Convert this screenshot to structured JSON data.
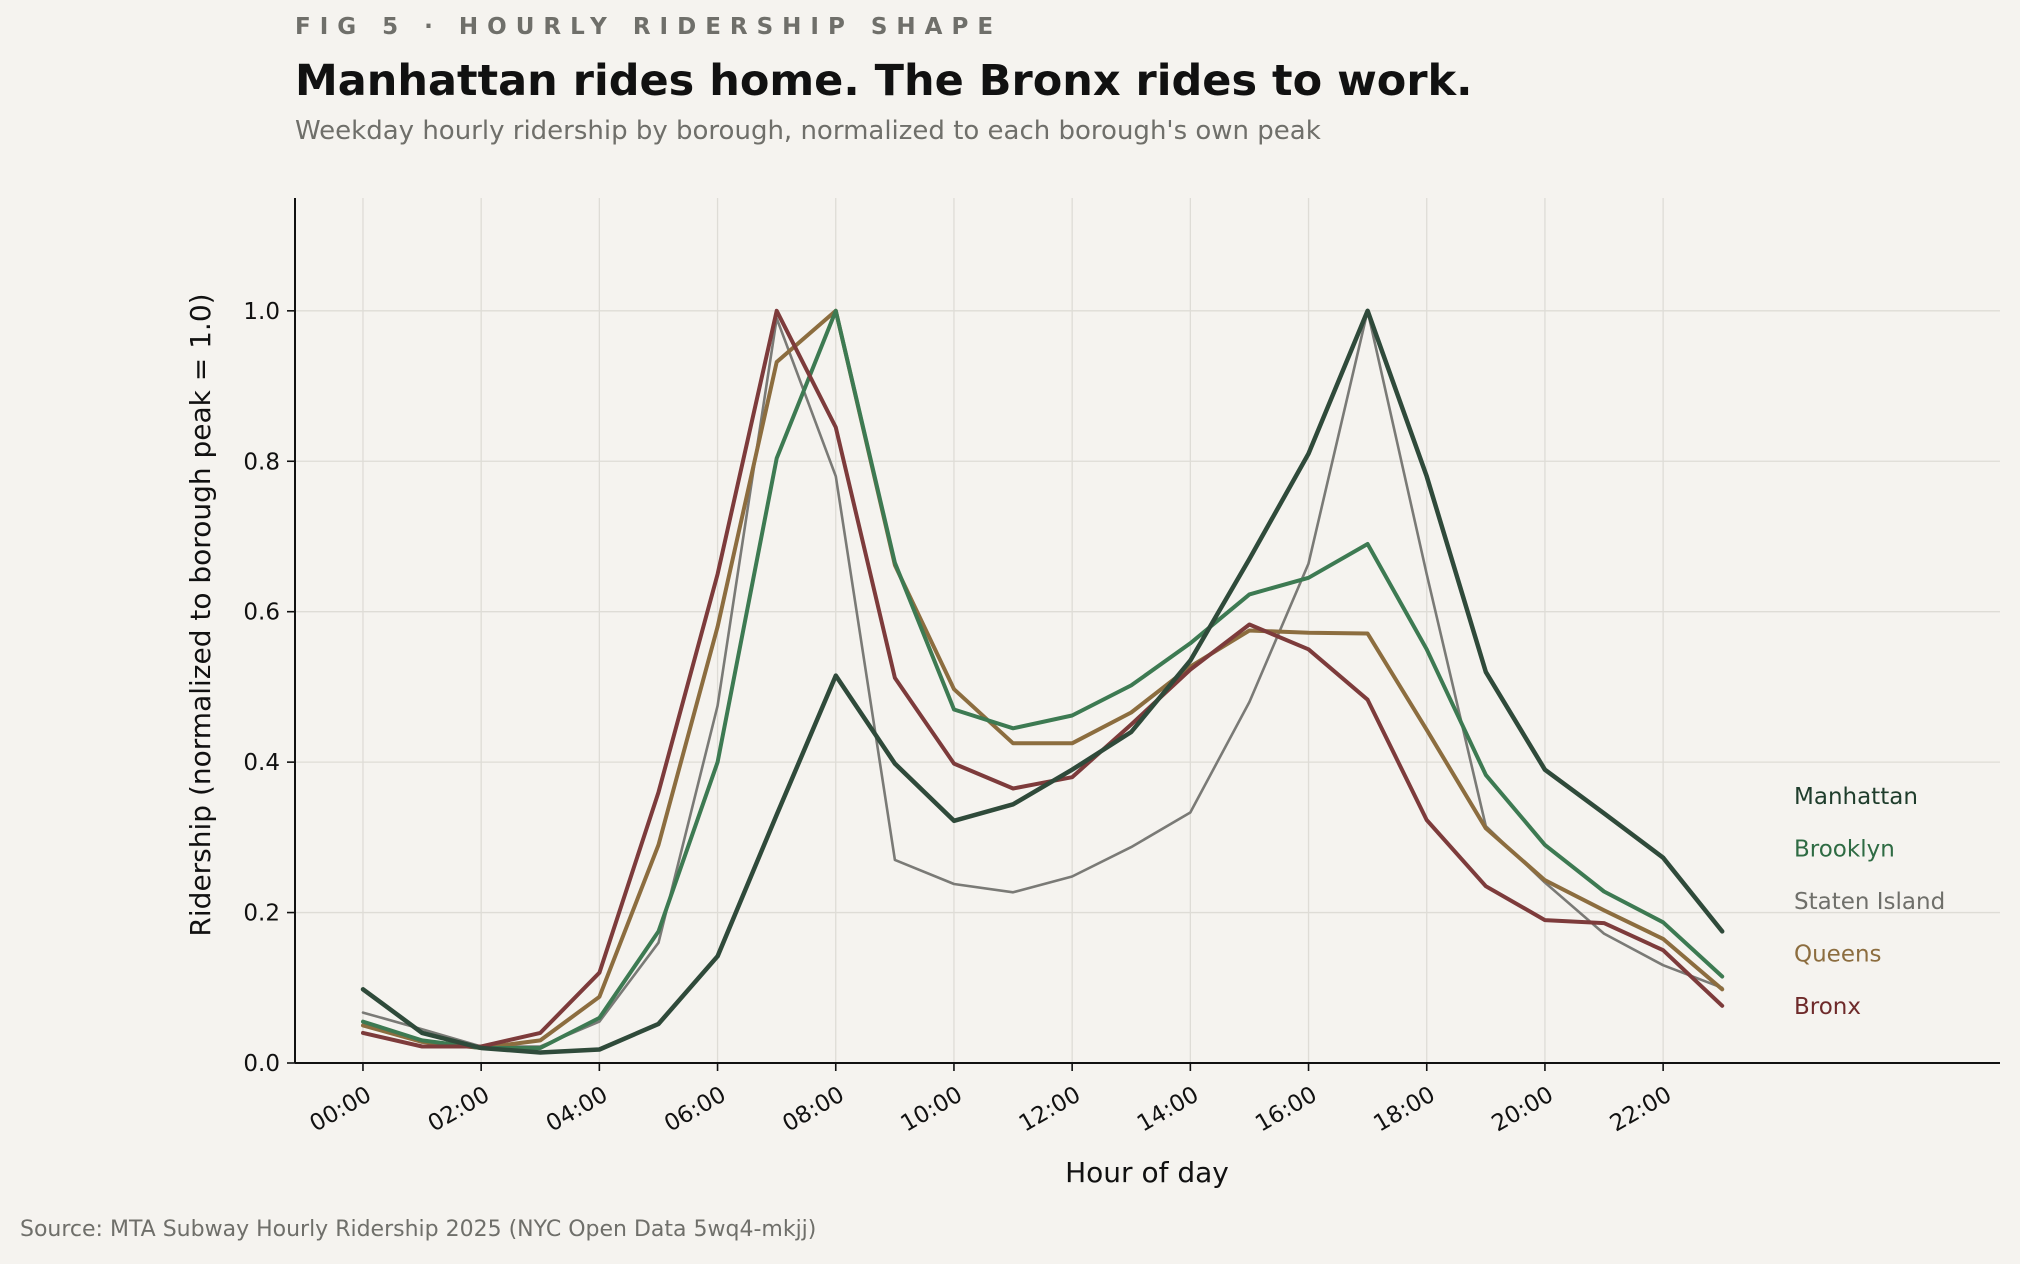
{
  "header": {
    "kicker": "FIG 5 · HOURLY RIDERSHIP SHAPE",
    "title": "Manhattan rides home. The Bronx rides to work.",
    "subtitle": "Weekday hourly ridership by borough, normalized to each borough's own peak"
  },
  "source": "Source: MTA Subway Hourly Ridership 2025 (NYC Open Data 5wq4-mkjj)",
  "chart_data": {
    "type": "line",
    "xlabel": "Hour of day",
    "ylabel": "Ridership (normalized to borough peak = 1.0)",
    "x": [
      0,
      1,
      2,
      3,
      4,
      5,
      6,
      7,
      8,
      9,
      10,
      11,
      12,
      13,
      14,
      15,
      16,
      17,
      18,
      19,
      20,
      21,
      22,
      23
    ],
    "xticks": [
      {
        "value": 0,
        "label": "00:00"
      },
      {
        "value": 2,
        "label": "02:00"
      },
      {
        "value": 4,
        "label": "04:00"
      },
      {
        "value": 6,
        "label": "06:00"
      },
      {
        "value": 8,
        "label": "08:00"
      },
      {
        "value": 10,
        "label": "10:00"
      },
      {
        "value": 12,
        "label": "12:00"
      },
      {
        "value": 14,
        "label": "14:00"
      },
      {
        "value": 16,
        "label": "16:00"
      },
      {
        "value": 18,
        "label": "18:00"
      },
      {
        "value": 20,
        "label": "20:00"
      },
      {
        "value": 22,
        "label": "22:00"
      }
    ],
    "yticks": [
      {
        "value": 0.0,
        "label": "0.0"
      },
      {
        "value": 0.2,
        "label": "0.2"
      },
      {
        "value": 0.4,
        "label": "0.4"
      },
      {
        "value": 0.6,
        "label": "0.6"
      },
      {
        "value": 0.8,
        "label": "0.8"
      },
      {
        "value": 1.0,
        "label": "1.0"
      }
    ],
    "xlim": [
      -1.15,
      27.7
    ],
    "ylim": [
      0,
      1.15
    ],
    "grid": true,
    "legend": "direct labels at right end of lines",
    "series": [
      {
        "name": "Staten Island",
        "color": "#7a7a76",
        "values": [
          0.067,
          0.045,
          0.022,
          0.022,
          0.055,
          0.16,
          0.475,
          0.99,
          0.78,
          0.27,
          0.238,
          0.227,
          0.248,
          0.287,
          0.333,
          0.48,
          0.664,
          1.0,
          0.65,
          0.315,
          0.24,
          0.172,
          0.13,
          0.1
        ]
      },
      {
        "name": "Queens",
        "color": "#8c6d3f",
        "values": [
          0.05,
          0.028,
          0.02,
          0.03,
          0.088,
          0.29,
          0.58,
          0.932,
          1.0,
          0.662,
          0.497,
          0.425,
          0.425,
          0.466,
          0.527,
          0.575,
          0.572,
          0.571,
          0.443,
          0.312,
          0.243,
          0.203,
          0.165,
          0.098
        ]
      },
      {
        "name": "Brooklyn",
        "color": "#3d7a52",
        "values": [
          0.055,
          0.03,
          0.02,
          0.02,
          0.06,
          0.175,
          0.4,
          0.804,
          1.0,
          0.665,
          0.47,
          0.445,
          0.462,
          0.502,
          0.558,
          0.623,
          0.645,
          0.69,
          0.55,
          0.383,
          0.29,
          0.228,
          0.187,
          0.115
        ]
      },
      {
        "name": "Bronx",
        "color": "#7d3b3b",
        "values": [
          0.04,
          0.022,
          0.022,
          0.04,
          0.12,
          0.36,
          0.65,
          1.0,
          0.845,
          0.512,
          0.398,
          0.365,
          0.38,
          0.45,
          0.523,
          0.583,
          0.55,
          0.483,
          0.323,
          0.235,
          0.19,
          0.186,
          0.15,
          0.076
        ]
      },
      {
        "name": "Manhattan",
        "color": "#2f4a3a",
        "values": [
          0.098,
          0.04,
          0.02,
          0.014,
          0.018,
          0.052,
          0.142,
          0.33,
          0.515,
          0.398,
          0.322,
          0.344,
          0.39,
          0.44,
          0.535,
          0.67,
          0.81,
          1.0,
          0.78,
          0.52,
          0.39,
          0.332,
          0.273,
          0.175
        ]
      }
    ],
    "legend_entries": [
      {
        "name": "Manhattan",
        "color": "#1f3d2c"
      },
      {
        "name": "Brooklyn",
        "color": "#2e6b43"
      },
      {
        "name": "Staten Island",
        "color": "#6f6f6a"
      },
      {
        "name": "Queens",
        "color": "#8c6d3f"
      },
      {
        "name": "Bronx",
        "color": "#6e2a2a"
      }
    ]
  }
}
